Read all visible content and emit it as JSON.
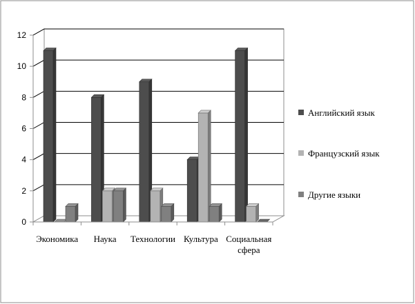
{
  "chart_data": {
    "type": "bar",
    "categories": [
      "Экономика",
      "Наука",
      "Технологии",
      "Культура",
      "Социальная сфера"
    ],
    "series": [
      {
        "name": "Английский язык",
        "values": [
          11,
          8,
          9,
          4,
          11
        ]
      },
      {
        "name": "Французский язык",
        "values": [
          0,
          2,
          2,
          7,
          1
        ]
      },
      {
        "name": "Другие языки",
        "values": [
          1,
          2,
          1,
          1,
          0
        ]
      }
    ],
    "title": "",
    "xlabel": "",
    "ylabel": "",
    "ylim": [
      0,
      12
    ],
    "yticks": [
      0,
      2,
      4,
      6,
      8,
      10,
      12
    ],
    "grid": true,
    "legend_position": "right",
    "style": "3d-column",
    "colors": {
      "Английский язык": "#4d4d4d",
      "Французский язык": "#b3b3b3",
      "Другие языки": "#808080",
      "frame": "#8c8c8c",
      "grid": "#000000"
    }
  }
}
